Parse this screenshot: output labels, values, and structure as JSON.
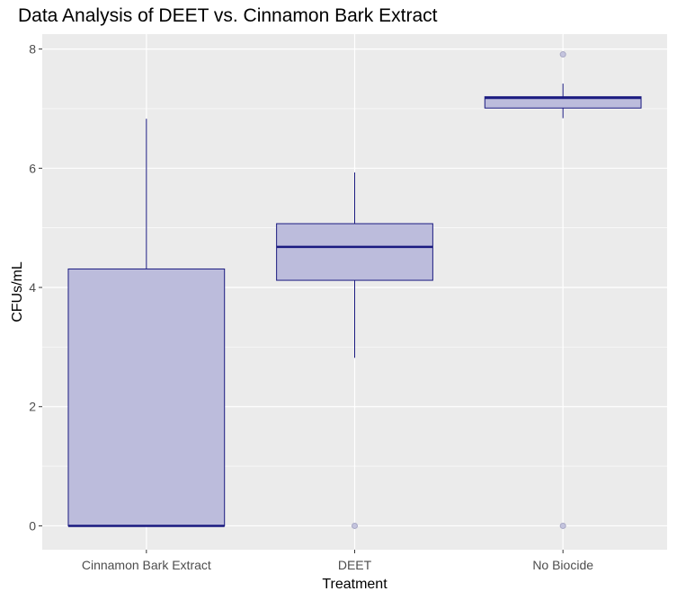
{
  "chart_data": {
    "type": "box",
    "title": "Data Analysis of DEET vs. Cinnamon Bark Extract",
    "xlabel": "Treatment",
    "ylabel": "CFUs/mL",
    "categories": [
      "Cinnamon Bark Extract",
      "DEET",
      "No Biocide"
    ],
    "ylim": [
      -0.4,
      8.25
    ],
    "yticks": [
      0,
      2,
      4,
      6,
      8
    ],
    "grid": true,
    "boxes": [
      {
        "category": "Cinnamon Bark Extract",
        "min": 0,
        "q1": 0,
        "median": 0,
        "q3": 4.31,
        "max": 6.83,
        "outliers": []
      },
      {
        "category": "DEET",
        "min": 2.82,
        "q1": 4.12,
        "median": 4.68,
        "q3": 5.07,
        "max": 5.93,
        "outliers": [
          0
        ]
      },
      {
        "category": "No Biocide",
        "min": 6.84,
        "q1": 7.01,
        "median": 7.18,
        "q3": 7.2,
        "max": 7.42,
        "outliers": [
          7.91,
          0
        ]
      }
    ],
    "colors": {
      "box_fill": "#bcbcdc",
      "box_stroke": "#1a1a80",
      "median": "#1a1a80",
      "outlier_fill": "#c4c4de",
      "outlier_stroke": "#a8a8c4",
      "panel": "#ebebeb",
      "grid_major": "#ffffff"
    }
  }
}
